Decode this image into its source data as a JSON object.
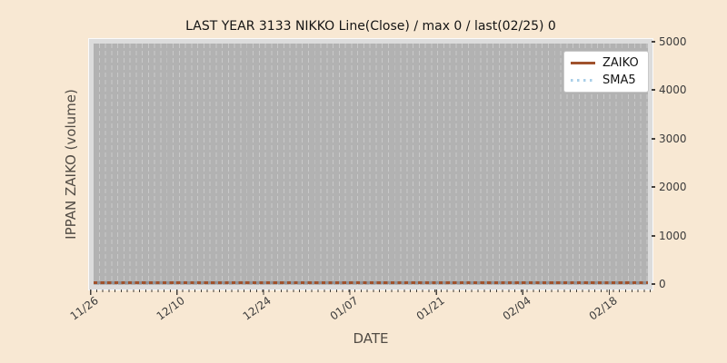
{
  "figure": {
    "colors": {
      "background": "#f8e8d3",
      "plot_background": "#b2b2b2",
      "plot_frame": "#dcdcdc",
      "gridline": "#c9c9c9",
      "zaiko_line": "#a0522d",
      "sma5_line": "#a9cfe8",
      "tick_text": "#3c3c3c",
      "axis_label_text": "#524c45"
    }
  },
  "chart_data": {
    "type": "line",
    "title": "LAST YEAR 3133 NIKKO Line(Close) / max 0 / last(02/25) 0",
    "xlabel": "DATE",
    "ylabel": "IPPAN ZAIKO (volume)",
    "x_range": [
      "11/26",
      "02/25"
    ],
    "x_tick_labels": [
      "11/26",
      "12/10",
      "12/24",
      "01/07",
      "01/21",
      "02/04",
      "02/18"
    ],
    "y_tick_labels": [
      "5000",
      "4000",
      "3000",
      "2000",
      "1000",
      "0"
    ],
    "ylim": [
      0,
      5000
    ],
    "grid": "vertical dashed daily gridlines",
    "legend_position": "upper right",
    "max_value": 0,
    "last_date": "02/25",
    "last_value": 0,
    "series": [
      {
        "name": "ZAIKO",
        "style": "solid",
        "color": "#a0522d",
        "categories": [
          "11/26",
          "12/10",
          "12/24",
          "01/07",
          "01/21",
          "02/04",
          "02/18"
        ],
        "values": [
          0,
          0,
          0,
          0,
          0,
          0,
          0
        ]
      },
      {
        "name": "SMA5",
        "style": "dotted",
        "color": "#a9cfe8",
        "categories": [
          "11/26",
          "12/10",
          "12/24",
          "01/07",
          "01/21",
          "02/04",
          "02/18"
        ],
        "values": [
          0,
          0,
          0,
          0,
          0,
          0,
          0
        ]
      }
    ]
  }
}
